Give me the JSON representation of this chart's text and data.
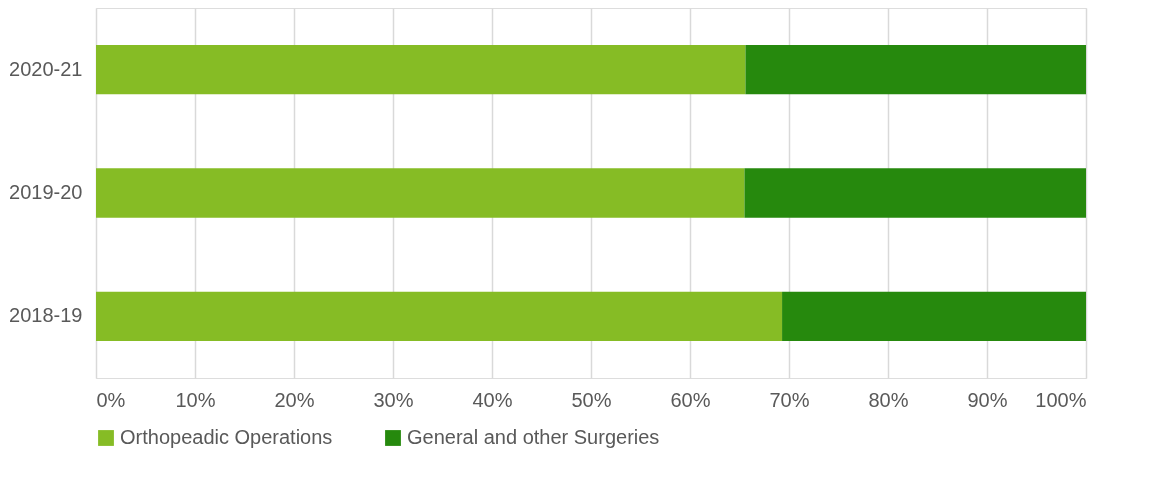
{
  "chart_data": {
    "type": "bar",
    "orientation": "horizontal",
    "stacked": true,
    "categories": [
      "2020-21",
      "2019-20",
      "2018-19"
    ],
    "series": [
      {
        "name": "Orthopeadic Operations",
        "color": "#86bc25",
        "values": [
          65.6,
          65.5,
          69.3
        ]
      },
      {
        "name": "General and other Surgeries",
        "color": "#26890d",
        "values": [
          34.4,
          34.5,
          30.7
        ]
      }
    ],
    "xlim": [
      0,
      100
    ],
    "xticks": [
      {
        "value": 0,
        "label": "0%"
      },
      {
        "value": 10,
        "label": "10%"
      },
      {
        "value": 20,
        "label": "20%"
      },
      {
        "value": 30,
        "label": "30%"
      },
      {
        "value": 40,
        "label": "40%"
      },
      {
        "value": 50,
        "label": "50%"
      },
      {
        "value": 60,
        "label": "60%"
      },
      {
        "value": 70,
        "label": "70%"
      },
      {
        "value": 80,
        "label": "80%"
      },
      {
        "value": 90,
        "label": "90%"
      },
      {
        "value": 100,
        "label": "100%"
      }
    ],
    "grid": "x",
    "legend": "bottom"
  }
}
